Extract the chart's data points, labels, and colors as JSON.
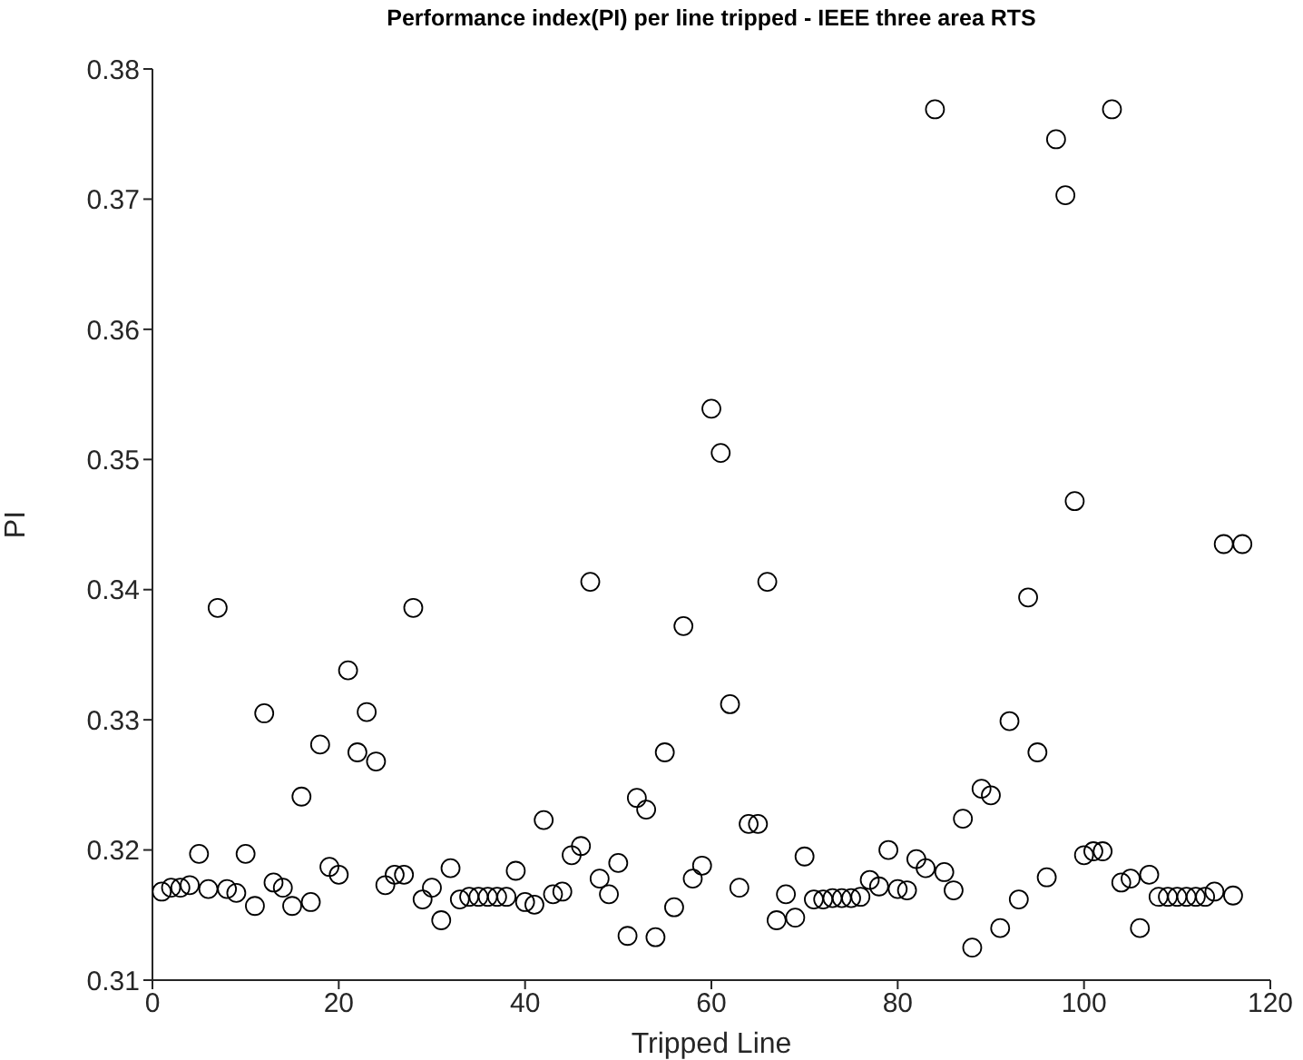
{
  "chart_data": {
    "type": "scatter",
    "title": "Performance index(PI) per line tripped - IEEE three area RTS",
    "xlabel": "Tripped Line",
    "ylabel": "PI",
    "xlim": [
      0,
      120
    ],
    "xticks": [
      0,
      20,
      40,
      60,
      80,
      100,
      120
    ],
    "ylim": [
      0.31,
      0.38
    ],
    "yticks": [
      0.31,
      0.32,
      0.33,
      0.34,
      0.35,
      0.36,
      0.37,
      0.38
    ],
    "grid": false,
    "legend": false,
    "marker": "circle",
    "series": [
      {
        "color": "#000000",
        "x": [
          1,
          2,
          3,
          4,
          5,
          6,
          7,
          8,
          9,
          10,
          11,
          12,
          13,
          14,
          15,
          16,
          17,
          18,
          19,
          20,
          21,
          22,
          23,
          24,
          25,
          26,
          27,
          28,
          29,
          30,
          31,
          32,
          33,
          34,
          35,
          36,
          37,
          38,
          39,
          40,
          41,
          42,
          43,
          44,
          45,
          46,
          47,
          48,
          49,
          50,
          51,
          52,
          53,
          54,
          55,
          56,
          57,
          58,
          59,
          60,
          61,
          62,
          63,
          64,
          65,
          66,
          67,
          68,
          69,
          70,
          71,
          72,
          73,
          74,
          75,
          76,
          77,
          78,
          79,
          80,
          81,
          82,
          83,
          84,
          85,
          86,
          87,
          88,
          89,
          90,
          91,
          92,
          93,
          94,
          95,
          96,
          97,
          98,
          99,
          100,
          101,
          102,
          103,
          104,
          105,
          106,
          107,
          108,
          109,
          110,
          111,
          112,
          113,
          114,
          115,
          116,
          117
        ],
        "values": [
          0.3168,
          0.3171,
          0.3171,
          0.3173,
          0.3197,
          0.317,
          0.3386,
          0.317,
          0.3167,
          0.3197,
          0.3157,
          0.3305,
          0.3175,
          0.3171,
          0.3157,
          0.3241,
          0.316,
          0.3281,
          0.3187,
          0.3181,
          0.3338,
          0.3275,
          0.3306,
          0.3268,
          0.3173,
          0.3181,
          0.3181,
          0.3386,
          0.3162,
          0.3171,
          0.3146,
          0.3186,
          0.3162,
          0.3164,
          0.3164,
          0.3164,
          0.3164,
          0.3164,
          0.3184,
          0.316,
          0.3158,
          0.3223,
          0.3166,
          0.3168,
          0.3196,
          0.3203,
          0.3406,
          0.3178,
          0.3166,
          0.319,
          0.3134,
          0.324,
          0.3231,
          0.3133,
          0.3275,
          0.3156,
          0.3372,
          0.3178,
          0.3188,
          0.3539,
          0.3505,
          0.3312,
          0.3171,
          0.322,
          0.322,
          0.3406,
          0.3146,
          0.3166,
          0.3148,
          0.3195,
          0.3162,
          0.3162,
          0.3163,
          0.3163,
          0.3163,
          0.3164,
          0.3177,
          0.3172,
          0.32,
          0.317,
          0.3169,
          0.3193,
          0.3186,
          0.3769,
          0.3183,
          0.3169,
          0.3224,
          0.3125,
          0.3247,
          0.3242,
          0.314,
          0.3299,
          0.3162,
          0.3394,
          0.3275,
          0.3179,
          0.3746,
          0.3703,
          0.3468,
          0.3196,
          0.3199,
          0.3199,
          0.3769,
          0.3175,
          0.3178,
          0.314,
          0.3181,
          0.3164,
          0.3164,
          0.3164,
          0.3164,
          0.3164,
          0.3164,
          0.3168,
          0.3435,
          0.3165,
          0.3435
        ]
      }
    ]
  }
}
